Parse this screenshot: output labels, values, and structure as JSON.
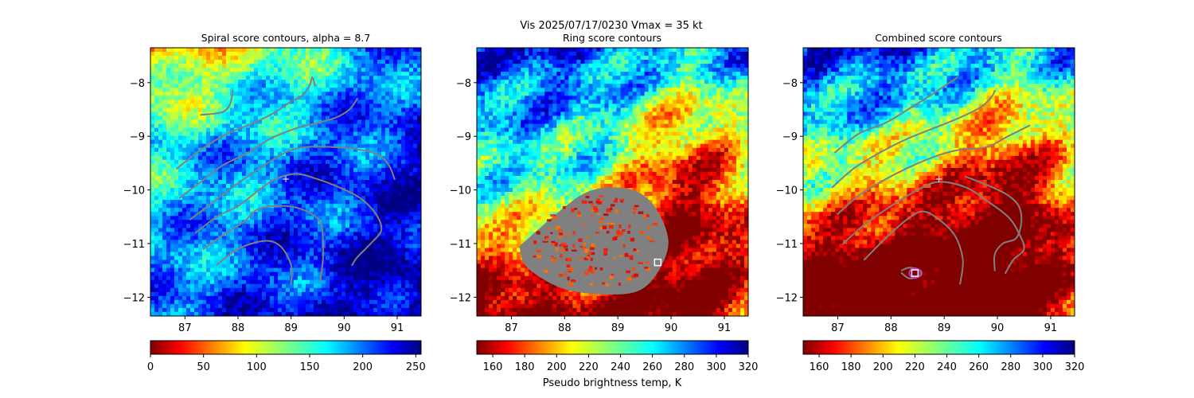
{
  "figure": {
    "suptitle_line1": "Vis  2025/07/17/0230    Vmax = 35 kt",
    "colorbar_label": "Pseudo brightness temp, K"
  },
  "chart_data": [
    {
      "type": "heatmap",
      "title": "Spiral score contours, alpha =  8.7",
      "xlim": [
        86.35,
        91.45
      ],
      "ylim": [
        -12.35,
        -7.35
      ],
      "xticks": [
        87,
        88,
        89,
        90,
        91
      ],
      "yticks": [
        -8,
        -9,
        -10,
        -11,
        -12
      ],
      "xtick_labels": [
        "87",
        "88",
        "89",
        "90",
        "91"
      ],
      "ytick_labels": [
        "−8",
        "−9",
        "−10",
        "−11",
        "−12"
      ],
      "colormap": "jet_r",
      "colorbar": {
        "ticks": [
          0,
          50,
          100,
          150,
          200,
          250
        ],
        "tick_labels": [
          "0",
          "50",
          "100",
          "150",
          "200",
          "250"
        ],
        "range": [
          0,
          255
        ]
      },
      "center_marker": {
        "x": 88.9,
        "y": -9.8,
        "symbol": "+"
      },
      "contour_color": "#808080",
      "contours": [
        [
          [
            87.3,
            -8.6
          ],
          [
            87.7,
            -8.55
          ],
          [
            87.85,
            -8.4
          ],
          [
            87.9,
            -8.15
          ]
        ],
        [
          [
            86.85,
            -9.6
          ],
          [
            87.3,
            -9.25
          ],
          [
            87.8,
            -8.95
          ],
          [
            88.3,
            -8.75
          ],
          [
            88.7,
            -8.55
          ],
          [
            89.0,
            -8.35
          ],
          [
            89.2,
            -8.25
          ],
          [
            89.35,
            -8.05
          ],
          [
            89.4,
            -7.9
          ],
          [
            89.45,
            -8.05
          ]
        ],
        [
          [
            86.9,
            -10.15
          ],
          [
            87.3,
            -9.85
          ],
          [
            87.7,
            -9.55
          ],
          [
            88.2,
            -9.3
          ],
          [
            88.6,
            -9.05
          ],
          [
            89.1,
            -8.85
          ],
          [
            89.5,
            -8.75
          ],
          [
            89.85,
            -8.65
          ],
          [
            90.1,
            -8.5
          ],
          [
            90.25,
            -8.3
          ]
        ],
        [
          [
            87.1,
            -10.55
          ],
          [
            87.5,
            -10.25
          ],
          [
            87.9,
            -9.95
          ],
          [
            88.4,
            -9.6
          ],
          [
            88.9,
            -9.3
          ],
          [
            89.3,
            -9.2
          ],
          [
            89.8,
            -9.2
          ],
          [
            90.3,
            -9.25
          ],
          [
            90.65,
            -9.35
          ],
          [
            90.85,
            -9.55
          ],
          [
            90.95,
            -9.8
          ]
        ],
        [
          [
            87.2,
            -10.8
          ],
          [
            87.6,
            -10.5
          ],
          [
            88.0,
            -10.3
          ],
          [
            88.4,
            -10.0
          ],
          [
            88.7,
            -9.8
          ],
          [
            89.1,
            -9.7
          ],
          [
            89.5,
            -9.8
          ],
          [
            89.9,
            -9.95
          ],
          [
            90.3,
            -10.15
          ],
          [
            90.6,
            -10.45
          ],
          [
            90.7,
            -10.75
          ],
          [
            90.5,
            -11.0
          ],
          [
            90.25,
            -11.25
          ],
          [
            90.15,
            -11.4
          ]
        ],
        [
          [
            87.35,
            -11.1
          ],
          [
            87.7,
            -10.85
          ],
          [
            88.1,
            -10.6
          ],
          [
            88.4,
            -10.35
          ],
          [
            88.9,
            -10.3
          ],
          [
            89.3,
            -10.4
          ],
          [
            89.55,
            -10.6
          ],
          [
            89.6,
            -10.9
          ],
          [
            89.6,
            -11.3
          ],
          [
            89.55,
            -11.7
          ]
        ],
        [
          [
            87.6,
            -11.4
          ],
          [
            88.0,
            -11.1
          ],
          [
            88.5,
            -10.95
          ],
          [
            88.8,
            -11.05
          ],
          [
            89.0,
            -11.4
          ],
          [
            89.0,
            -11.75
          ]
        ]
      ]
    },
    {
      "type": "heatmap",
      "title": "Ring score contours",
      "xlim": [
        86.35,
        91.45
      ],
      "ylim": [
        -12.35,
        -7.35
      ],
      "xticks": [
        87,
        88,
        89,
        90,
        91
      ],
      "yticks": [
        -8,
        -9,
        -10,
        -11,
        -12
      ],
      "xtick_labels": [
        "87",
        "88",
        "89",
        "90",
        "91"
      ],
      "ytick_labels": [
        "−8",
        "−9",
        "−10",
        "−11",
        "−12"
      ],
      "colormap": "jet_r",
      "colorbar": {
        "ticks": [
          160,
          180,
          200,
          220,
          240,
          260,
          280,
          300,
          320
        ],
        "tick_labels": [
          "160",
          "180",
          "200",
          "220",
          "240",
          "260",
          "280",
          "300",
          "320"
        ],
        "range": [
          150,
          320
        ]
      },
      "marker_square": {
        "x": 89.75,
        "y": -11.35,
        "color": "#ffffff"
      },
      "ring_region_color": "#808080",
      "ring_region": [
        [
          87.15,
          -11.05
        ],
        [
          87.9,
          -10.4
        ],
        [
          88.4,
          -10.05
        ],
        [
          88.9,
          -9.95
        ],
        [
          89.4,
          -10.05
        ],
        [
          89.75,
          -10.4
        ],
        [
          89.95,
          -10.95
        ],
        [
          89.8,
          -11.45
        ],
        [
          89.45,
          -11.85
        ],
        [
          88.9,
          -11.95
        ],
        [
          88.0,
          -11.85
        ],
        [
          87.3,
          -11.45
        ]
      ]
    },
    {
      "type": "heatmap",
      "title": "Combined score contours",
      "xlim": [
        86.35,
        91.45
      ],
      "ylim": [
        -12.35,
        -7.35
      ],
      "xticks": [
        87,
        88,
        89,
        90,
        91
      ],
      "yticks": [
        -8,
        -9,
        -10,
        -11,
        -12
      ],
      "xtick_labels": [
        "87",
        "88",
        "89",
        "90",
        "91"
      ],
      "ytick_labels": [
        "−8",
        "−9",
        "−10",
        "−11",
        "−12"
      ],
      "colormap": "jet_r",
      "colorbar": {
        "ticks": [
          160,
          180,
          200,
          220,
          240,
          260,
          280,
          300,
          320
        ],
        "tick_labels": [
          "160",
          "180",
          "200",
          "220",
          "240",
          "260",
          "280",
          "300",
          "320"
        ],
        "range": [
          150,
          320
        ]
      },
      "center_marker": {
        "x": 88.9,
        "y": -9.8,
        "symbol": "+"
      },
      "marker_square": {
        "x": 88.45,
        "y": -11.55,
        "color": "#ffffff",
        "ring_color": "#cc33cc"
      },
      "contour_color": "#808080",
      "contours": [
        [
          [
            86.95,
            -9.3
          ],
          [
            87.4,
            -8.95
          ],
          [
            87.9,
            -8.75
          ],
          [
            88.4,
            -8.45
          ],
          [
            88.8,
            -8.2
          ],
          [
            89.1,
            -8.0
          ],
          [
            89.25,
            -7.9
          ]
        ],
        [
          [
            86.9,
            -9.95
          ],
          [
            87.3,
            -9.6
          ],
          [
            87.8,
            -9.3
          ],
          [
            88.3,
            -9.05
          ],
          [
            88.8,
            -8.85
          ],
          [
            89.3,
            -8.65
          ],
          [
            89.7,
            -8.45
          ],
          [
            89.9,
            -8.25
          ],
          [
            89.95,
            -8.15
          ]
        ],
        [
          [
            87.0,
            -10.45
          ],
          [
            87.4,
            -10.1
          ],
          [
            87.9,
            -9.8
          ],
          [
            88.4,
            -9.55
          ],
          [
            88.9,
            -9.35
          ],
          [
            89.3,
            -9.25
          ],
          [
            89.8,
            -9.2
          ],
          [
            90.2,
            -9.0
          ],
          [
            90.5,
            -8.85
          ],
          [
            90.6,
            -8.8
          ]
        ],
        [
          [
            87.1,
            -11.0
          ],
          [
            87.5,
            -10.65
          ],
          [
            88.0,
            -10.3
          ],
          [
            88.5,
            -10.0
          ],
          [
            88.9,
            -9.85
          ],
          [
            89.4,
            -9.95
          ],
          [
            89.8,
            -10.2
          ],
          [
            90.2,
            -10.5
          ],
          [
            90.4,
            -10.8
          ],
          [
            90.5,
            -11.1
          ],
          [
            90.3,
            -11.3
          ],
          [
            90.15,
            -11.55
          ]
        ],
        [
          [
            87.5,
            -11.3
          ],
          [
            87.9,
            -10.9
          ],
          [
            88.3,
            -10.55
          ],
          [
            88.6,
            -10.4
          ],
          [
            88.9,
            -10.55
          ],
          [
            89.2,
            -10.85
          ],
          [
            89.35,
            -11.3
          ],
          [
            89.3,
            -11.75
          ]
        ],
        [
          [
            89.4,
            -9.75
          ],
          [
            89.9,
            -9.95
          ],
          [
            90.2,
            -10.1
          ],
          [
            90.4,
            -10.3
          ],
          [
            90.45,
            -10.6
          ],
          [
            90.35,
            -10.9
          ],
          [
            90.1,
            -11.0
          ],
          [
            89.95,
            -11.2
          ],
          [
            89.95,
            -11.5
          ]
        ],
        [
          [
            88.2,
            -11.5
          ],
          [
            88.35,
            -11.45
          ],
          [
            88.55,
            -11.5
          ],
          [
            88.55,
            -11.6
          ],
          [
            88.35,
            -11.65
          ],
          [
            88.2,
            -11.55
          ]
        ]
      ]
    }
  ]
}
